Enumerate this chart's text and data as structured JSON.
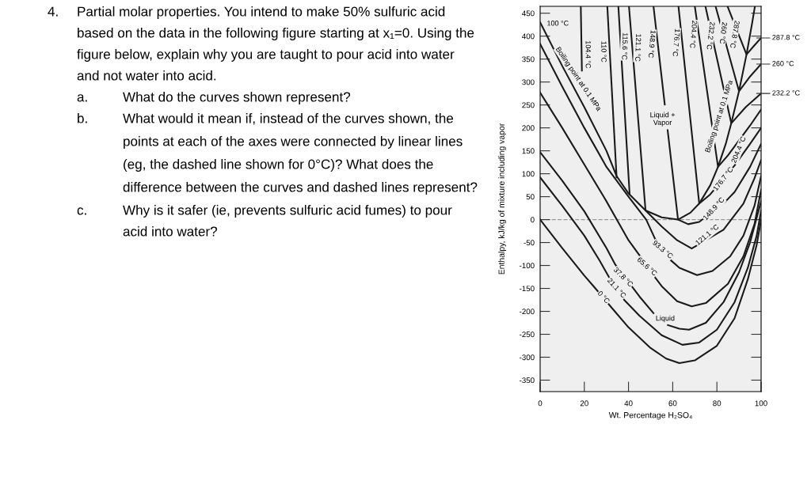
{
  "chart_data": {
    "type": "line",
    "xlabel": "Wt. Percentage H₂SO₄",
    "ylabel": "Enthalpy, kJ/kg of mixture including vapor",
    "xlim": [
      0,
      100
    ],
    "ylim": [
      -375,
      465
    ],
    "xticks": [
      0,
      20,
      40,
      60,
      80,
      100
    ],
    "yticks": [
      -350,
      -300,
      -250,
      -200,
      -150,
      -100,
      -50,
      0,
      50,
      100,
      150,
      200,
      250,
      300,
      350,
      400,
      450
    ],
    "grid": false,
    "legend": false,
    "marker": "none",
    "line_style": "solid",
    "ref_lines": [
      {
        "axis": "y",
        "value": 0,
        "color": "#9a9a9a",
        "line_style": "dashed"
      }
    ],
    "series": [
      {
        "color": "#1a1a1a",
        "x": [
          0,
          10,
          20,
          25,
          32,
          40,
          50,
          57,
          63,
          70,
          80,
          88,
          94,
          98,
          100
        ],
        "values": [
          0,
          -62,
          -122,
          -150,
          -190,
          -235,
          -280,
          -303,
          -313,
          -307,
          -275,
          -215,
          -130,
          -55,
          0
        ]
      },
      {
        "color": "#1a1a1a",
        "x": [
          0,
          10,
          20,
          27,
          31,
          38,
          45,
          55,
          64.4,
          72,
          80,
          88,
          94,
          98,
          100
        ],
        "values": [
          92,
          30,
          -35,
          -90,
          -124,
          -175,
          -210,
          -252,
          -273,
          -268,
          -240,
          -180,
          -105,
          -35,
          20
        ]
      },
      {
        "color": "#1a1a1a",
        "x": [
          0,
          10,
          20,
          30,
          34,
          45,
          51.3,
          54.5,
          57.8,
          63,
          67.4,
          75,
          83,
          90,
          95,
          100
        ],
        "values": [
          147,
          85,
          18,
          -62,
          -98,
          -168,
          -204,
          null,
          -230,
          -238,
          -240,
          -225,
          -180,
          -115,
          -50,
          40
        ]
      },
      {
        "color": "#1a1a1a",
        "x": [
          0,
          10,
          20,
          30,
          40,
          45,
          52,
          55,
          62,
          68.6,
          75,
          85,
          92,
          97,
          100
        ],
        "values": [
          277,
          200,
          120,
          40,
          -45,
          -78,
          -126,
          -145,
          -178,
          -189,
          -182,
          -140,
          -80,
          -10,
          65
        ]
      },
      {
        "color": "#1a1a1a",
        "x": [
          0,
          10,
          20,
          30,
          40,
          48,
          52,
          59,
          63,
          71,
          78,
          86,
          92,
          97,
          100
        ],
        "values": [
          383,
          290,
          200,
          115,
          50,
          0,
          -42,
          -88,
          -105,
          -121,
          -112,
          -80,
          -35,
          30,
          95
        ]
      },
      {
        "color": "#1a1a1a",
        "x": [
          0,
          10,
          20,
          30,
          34.6,
          40,
          47.7,
          55,
          62.4,
          68,
          72,
          77,
          80.5,
          84,
          86.5,
          90,
          93.4,
          96,
          97.2
        ],
        "values": [
          430,
          335,
          245,
          150,
          95,
          57,
          20,
          5,
          0,
          15,
          35,
          75,
          115,
          165,
          210,
          280,
          360,
          430,
          465
        ]
      },
      {
        "color": "#1a1a1a",
        "x": [
          40.2,
          47.7,
          55,
          62,
          68.6,
          83,
          92,
          97,
          100
        ],
        "values": [
          465,
          20,
          -15,
          -45,
          -63,
          -22,
          35,
          90,
          130
        ]
      },
      {
        "color": "#1a1a1a",
        "x": [
          51.3,
          56.4,
          57,
          57.7,
          62.4,
          67,
          72,
          84,
          88,
          95,
          100
        ],
        "values": [
          465,
          251,
          null,
          195,
          0,
          -10,
          -5,
          40,
          60,
          115,
          165
        ]
      },
      {
        "color": "#1a1a1a",
        "x": [
          62.6,
          72,
          77,
          88,
          95,
          100
        ],
        "values": [
          465,
          35,
          55,
          118,
          165,
          200
        ]
      },
      {
        "color": "#1a1a1a",
        "x": [
          70,
          80.5,
          85,
          95,
          100
        ],
        "values": [
          465,
          115,
          140,
          205,
          240
        ]
      },
      {
        "color": "#1a1a1a",
        "x": [
          74.8,
          86.5,
          93,
          100
        ],
        "values": [
          465,
          210,
          245,
          275
        ]
      },
      {
        "color": "#1a1a1a",
        "x": [
          79.4,
          90,
          95,
          100
        ],
        "values": [
          465,
          280,
          312,
          339
        ]
      },
      {
        "color": "#1a1a1a",
        "x": [
          84.8,
          93.4,
          97,
          100
        ],
        "values": [
          465,
          360,
          380,
          396
        ]
      },
      {
        "color": "#1a1a1a",
        "x": [
          18.4,
          18.9
        ],
        "values": [
          465,
          325
        ]
      },
      {
        "color": "#1a1a1a",
        "x": [
          30.4,
          34.6
        ],
        "values": [
          465,
          92
        ]
      },
      {
        "color": "#1a1a1a",
        "x": [
          35.4,
          40.5
        ],
        "values": [
          465,
          55
        ]
      }
    ],
    "annotations": [
      {
        "text": "100 °C",
        "x": 8,
        "y": 427
      },
      "104.4 °C",
      {
        "text": "110 °C",
        "x": 28.6,
        "y": 366
      },
      {
        "text": "115.6 °C",
        "x": 38.1,
        "y": 378
      },
      {
        "text": "121.1 °C",
        "x": 44.1,
        "y": 375
      },
      {
        "text": "148.9 °C",
        "x": 50.4,
        "y": 383
      },
      {
        "text": "176.7 °C",
        "x": 61.4,
        "y": 386
      },
      {
        "text": "204.4 °C",
        "x": 69.2,
        "y": 404
      },
      {
        "text": "232.2 °C",
        "x": 77,
        "y": 401
      },
      {
        "text": "260 °C",
        "x": 82.7,
        "y": 407
      },
      {
        "text": "287.8 °C",
        "x": 87.9,
        "y": 404
      },
      "Boiling point at 0.1 MPa",
      "Boiling point at 0.1 MPa",
      "Liquid +\nVapor",
      {
        "text": "204.4 °C",
        "x": 90,
        "y": 152
      },
      {
        "text": "176.7 °C",
        "x": 83,
        "y": 88
      },
      {
        "text": "148.9 °C",
        "x": 78.7,
        "y": 23
      },
      {
        "text": "121.1 °C",
        "x": 75.7,
        "y": -34
      },
      {
        "text": "93.3 °C",
        "x": 55.4,
        "y": -66
      },
      {
        "text": "65.6 °C",
        "x": 48.3,
        "y": -103
      },
      {
        "text": "37.8 °C",
        "x": 37.5,
        "y": -126
      },
      {
        "text": "21.1 °C",
        "x": 34.5,
        "y": -150
      },
      {
        "text": "0 °C",
        "x": 28.6,
        "y": -170
      },
      "Liquid",
      {
        "text": "287.8 °C",
        "x": 100,
        "y": 396
      },
      {
        "text": "260 °C",
        "x": 100,
        "y": 339
      },
      {
        "text": "232.2 °C",
        "x": 100,
        "y": 275
      },
      "4. Partial molar properties. You intend to make 50% sulfuric acid based on the data in the following figure starting at x₁=0. Using the figure below, explain why you are taught to pour acid into water and not water into acid.",
      "a. What do the curves shown represent?",
      "b. What would it mean if, instead of the curves shown, the points at each of the axes were connected by linear lines (eg, the dashed line shown for 0°C)? What does the difference between the curves and dashed lines represent?",
      "c. Why is it safer (ie, prevents sulfuric acid fumes) to pour acid into water?"
    ]
  }
}
